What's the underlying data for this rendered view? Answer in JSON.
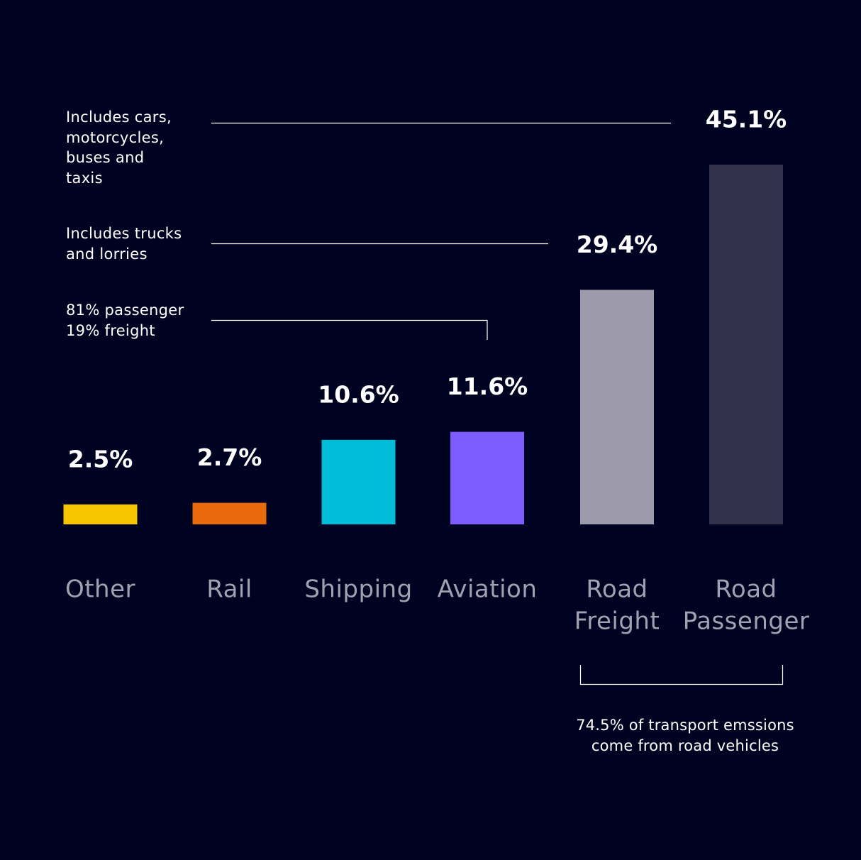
{
  "chart_data": {
    "type": "bar",
    "title": "",
    "xlabel": "",
    "ylabel": "",
    "ylim": [
      0,
      45.1
    ],
    "grid": false,
    "categories": [
      [
        "Other"
      ],
      [
        "Rail"
      ],
      [
        "Shipping"
      ],
      [
        "Aviation"
      ],
      [
        "Road",
        "Freight"
      ],
      [
        "Road",
        "Passenger"
      ]
    ],
    "values": [
      2.5,
      2.7,
      10.6,
      11.6,
      29.4,
      45.1
    ],
    "data_labels": [
      "2.5%",
      "2.7%",
      "10.6%",
      "11.6%",
      "29.4%",
      "45.1%"
    ],
    "colors": [
      "#f7c600",
      "#e86a0a",
      "#00bcd9",
      "#7c5cff",
      "#9c9aab",
      "#32324d"
    ]
  },
  "annotations": {
    "road_passenger_note": "Includes cars,\nmotorcycles,\nbuses and\ntaxis",
    "road_freight_note": "Includes trucks\nand lorries",
    "aviation_note": "81% passenger\n19% freight",
    "road_total_note": "74.5% of transport emssions come from road vehicles"
  },
  "colors": {
    "background": "#000222",
    "label_text": "#ffffff",
    "category_text": "#a2a1b1",
    "leader_line": "#ffffff"
  }
}
